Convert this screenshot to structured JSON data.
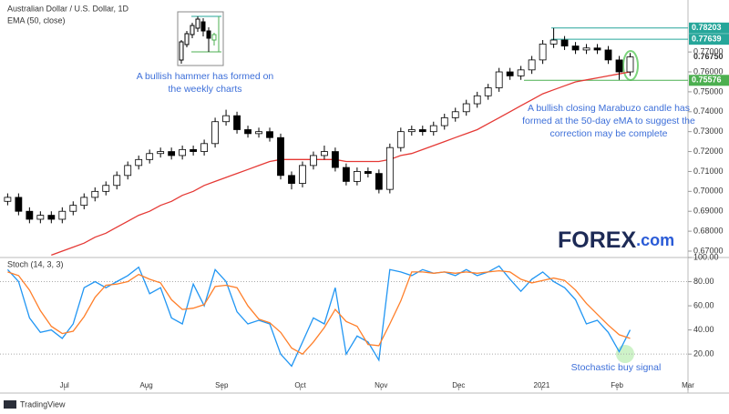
{
  "chart_data": [
    {
      "type": "candlestick",
      "title": "Australian Dollar / U.S. Dollar, 1D",
      "open": [
        0.695,
        0.697,
        0.69,
        0.686,
        0.688,
        0.686,
        0.69,
        0.693,
        0.697,
        0.7,
        0.703,
        0.708,
        0.713,
        0.716,
        0.719,
        0.72,
        0.718,
        0.721,
        0.72,
        0.724,
        0.735,
        0.738,
        0.731,
        0.729,
        0.73,
        0.727,
        0.708,
        0.704,
        0.713,
        0.718,
        0.72,
        0.712,
        0.705,
        0.71,
        0.709,
        0.701,
        0.722,
        0.73,
        0.731,
        0.73,
        0.733,
        0.737,
        0.74,
        0.744,
        0.748,
        0.752,
        0.76,
        0.758,
        0.761,
        0.766,
        0.774,
        0.776,
        0.773,
        0.771,
        0.772,
        0.771,
        0.766,
        0.76
      ],
      "high": [
        0.699,
        0.699,
        0.692,
        0.69,
        0.69,
        0.692,
        0.695,
        0.699,
        0.702,
        0.705,
        0.71,
        0.715,
        0.718,
        0.721,
        0.722,
        0.722,
        0.723,
        0.723,
        0.726,
        0.737,
        0.741,
        0.74,
        0.733,
        0.732,
        0.732,
        0.729,
        0.71,
        0.715,
        0.72,
        0.723,
        0.722,
        0.714,
        0.712,
        0.712,
        0.711,
        0.724,
        0.732,
        0.733,
        0.733,
        0.735,
        0.739,
        0.742,
        0.746,
        0.75,
        0.754,
        0.762,
        0.762,
        0.763,
        0.768,
        0.776,
        0.782,
        0.778,
        0.775,
        0.774,
        0.774,
        0.773,
        0.768,
        0.7695
      ],
      "low": [
        0.693,
        0.688,
        0.684,
        0.684,
        0.684,
        0.684,
        0.688,
        0.691,
        0.695,
        0.698,
        0.701,
        0.706,
        0.711,
        0.714,
        0.717,
        0.716,
        0.716,
        0.718,
        0.718,
        0.722,
        0.733,
        0.729,
        0.727,
        0.727,
        0.725,
        0.706,
        0.701,
        0.702,
        0.711,
        0.716,
        0.71,
        0.703,
        0.703,
        0.707,
        0.699,
        0.699,
        0.72,
        0.728,
        0.728,
        0.728,
        0.731,
        0.735,
        0.738,
        0.742,
        0.746,
        0.75,
        0.756,
        0.756,
        0.759,
        0.764,
        0.772,
        0.771,
        0.769,
        0.769,
        0.769,
        0.764,
        0.756,
        0.758
      ],
      "close": [
        0.697,
        0.69,
        0.686,
        0.688,
        0.686,
        0.69,
        0.693,
        0.697,
        0.7,
        0.703,
        0.708,
        0.713,
        0.716,
        0.719,
        0.72,
        0.718,
        0.721,
        0.72,
        0.724,
        0.735,
        0.738,
        0.731,
        0.729,
        0.73,
        0.727,
        0.708,
        0.704,
        0.713,
        0.718,
        0.72,
        0.712,
        0.705,
        0.71,
        0.709,
        0.701,
        0.722,
        0.73,
        0.731,
        0.73,
        0.733,
        0.737,
        0.74,
        0.744,
        0.748,
        0.752,
        0.76,
        0.758,
        0.761,
        0.766,
        0.774,
        0.776,
        0.773,
        0.771,
        0.772,
        0.771,
        0.766,
        0.76,
        0.7675
      ],
      "series": [
        {
          "name": "EMA (50, close)",
          "color": "#e53935",
          "values": [
            null,
            null,
            null,
            null,
            0.668,
            0.67,
            0.672,
            0.674,
            0.677,
            0.679,
            0.682,
            0.685,
            0.688,
            0.69,
            0.693,
            0.695,
            0.698,
            0.7,
            0.703,
            0.705,
            0.707,
            0.709,
            0.711,
            0.713,
            0.715,
            0.716,
            0.716,
            0.716,
            0.716,
            0.716,
            0.716,
            0.715,
            0.715,
            0.715,
            0.715,
            0.716,
            0.718,
            0.719,
            0.721,
            0.723,
            0.725,
            0.727,
            0.729,
            0.731,
            0.734,
            0.737,
            0.74,
            0.743,
            0.746,
            0.749,
            0.751,
            0.753,
            0.755,
            0.756,
            0.757,
            0.758,
            0.759,
            0.76
          ]
        }
      ],
      "xlim": [
        -0.7,
        62.3
      ],
      "ylim": [
        0.6668,
        0.7961
      ],
      "yticks": [
        {
          "value": 0.67,
          "label": "0.67000"
        },
        {
          "value": 0.68,
          "label": "0.68000"
        },
        {
          "value": 0.69,
          "label": "0.69000"
        },
        {
          "value": 0.7,
          "label": "0.70000"
        },
        {
          "value": 0.71,
          "label": "0.71000"
        },
        {
          "value": 0.72,
          "label": "0.72000"
        },
        {
          "value": 0.73,
          "label": "0.73000"
        },
        {
          "value": 0.74,
          "label": "0.74000"
        },
        {
          "value": 0.75,
          "label": "0.75000"
        },
        {
          "value": 0.76,
          "label": "0.76000"
        },
        {
          "value": 0.77,
          "label": "0.77000"
        }
      ],
      "levels": [
        {
          "value": 0.78203,
          "label": "0.78203",
          "color": "#26a69a"
        },
        {
          "value": 0.77639,
          "label": "0.77639",
          "color": "#26a69a"
        },
        {
          "value": 0.7675,
          "label": "0.76750"
        },
        {
          "value": 0.75576,
          "label": "0.75576",
          "color": "#4caf50"
        }
      ],
      "annotations": [
        {
          "lines": [
            "A bullish hammer has formed on",
            "the weekly charts"
          ],
          "color": "#3d6fd9"
        },
        {
          "lines": [
            "A bullish closing Marabuzo candle has",
            "formed at the 50-day eMA to suggest the",
            "correction may be complete"
          ],
          "color": "#3d6fd9"
        }
      ]
    },
    {
      "type": "line",
      "title": "Stoch (14, 3, 3)",
      "series": [
        {
          "color": "#2196f3",
          "values": [
            90,
            80,
            50,
            38,
            40,
            33,
            45,
            75,
            80,
            75,
            80,
            85,
            92,
            70,
            75,
            50,
            45,
            78,
            60,
            90,
            80,
            55,
            45,
            48,
            45,
            20,
            10,
            30,
            50,
            45,
            75,
            20,
            35,
            30,
            15,
            90,
            88,
            85,
            90,
            87,
            88,
            85,
            90,
            85,
            88,
            93,
            82,
            72,
            82,
            88,
            80,
            75,
            65,
            45,
            48,
            38,
            22,
            40
          ]
        },
        {
          "color": "#ff7f2a",
          "values": [
            88,
            85,
            73,
            56,
            43,
            37,
            39,
            51,
            67,
            77,
            78,
            80,
            86,
            82,
            79,
            65,
            57,
            58,
            61,
            76,
            77,
            75,
            60,
            49,
            46,
            38,
            25,
            20,
            30,
            42,
            57,
            47,
            43,
            28,
            27,
            45,
            64,
            88,
            88,
            87,
            88,
            87,
            88,
            87,
            88,
            89,
            88,
            82,
            79,
            81,
            83,
            81,
            73,
            62,
            53,
            44,
            36,
            33
          ]
        }
      ],
      "xlim": [
        -0.7,
        62.3
      ],
      "ylim": [
        -7,
        100
      ],
      "yticks": [
        {
          "value": 20,
          "label": "20.00"
        },
        {
          "value": 40,
          "label": "40.00"
        },
        {
          "value": 60,
          "label": "60.00"
        },
        {
          "value": 80,
          "label": "80.00"
        },
        {
          "value": 100,
          "label": "100.00"
        }
      ],
      "xticks": [
        {
          "value": 5.2,
          "label": "Jul"
        },
        {
          "value": 12.7,
          "label": "Aug"
        },
        {
          "value": 19.6,
          "label": "Sep"
        },
        {
          "value": 26.8,
          "label": "Oct"
        },
        {
          "value": 34.2,
          "label": "Nov"
        },
        {
          "value": 41.3,
          "label": "Dec"
        },
        {
          "value": 48.9,
          "label": "2021"
        },
        {
          "value": 55.8,
          "label": "Feb"
        },
        {
          "value": 62.3,
          "label": "Mar"
        }
      ],
      "annotations": [
        {
          "lines": [
            "Stochastic buy signal"
          ],
          "color": "#3d6fd9"
        }
      ]
    }
  ],
  "logo": {
    "main": "FOREX",
    "suffix": ".com"
  },
  "footer": {
    "brand": "TradingView"
  }
}
